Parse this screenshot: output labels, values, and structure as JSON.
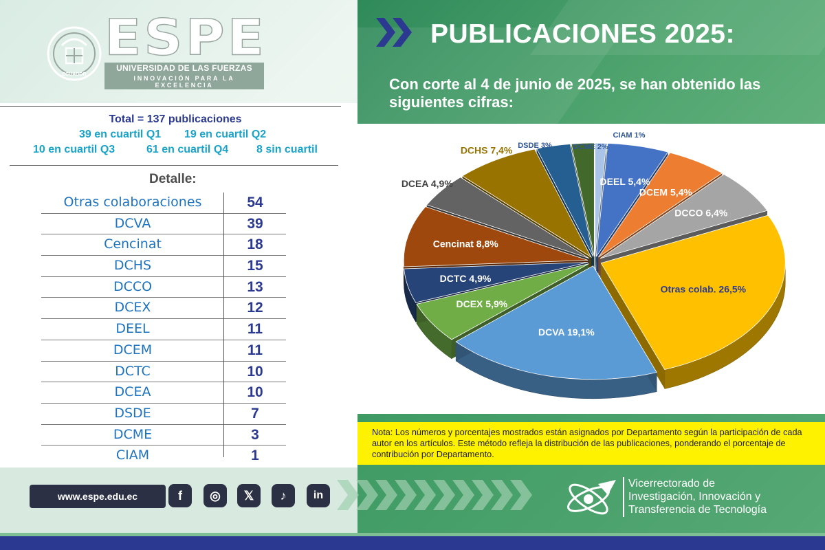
{
  "brand": {
    "name": "ESPE",
    "university": "UNIVERSIDAD DE LAS FUERZAS ARMADAS",
    "tagline": "INNOVACIÓN PARA LA EXCELENCIA",
    "seal_label": "ECUADOR"
  },
  "header": {
    "title": "PUBLICACIONES 2025:",
    "subtitle": "Con corte al 4 de junio de 2025, se han obtenido las siguientes cifras:"
  },
  "summary": {
    "total": "Total = 137 publicaciones",
    "q1": "39 en cuartil Q1",
    "q2": "19 en cuartil Q2",
    "q3": "10 en cuartil Q3",
    "q4": "61 en cuartil Q4",
    "none": "8 sin cuartil"
  },
  "detail": {
    "heading": "Detalle:",
    "rows": [
      {
        "name": "Otras colaboraciones",
        "value": "54"
      },
      {
        "name": "DCVA",
        "value": "39"
      },
      {
        "name": "Cencinat",
        "value": "18"
      },
      {
        "name": "DCHS",
        "value": "15"
      },
      {
        "name": "DCCO",
        "value": "13"
      },
      {
        "name": "DCEX",
        "value": "12"
      },
      {
        "name": "DEEL",
        "value": "11"
      },
      {
        "name": "DCEM",
        "value": "11"
      },
      {
        "name": "DCTC",
        "value": "10"
      },
      {
        "name": "DCEA",
        "value": "10"
      },
      {
        "name": "DSDE",
        "value": "7"
      },
      {
        "name": "DCME",
        "value": "3"
      },
      {
        "name": "CIAM",
        "value": "1"
      }
    ]
  },
  "chart_data": {
    "type": "pie",
    "style": "3d-exploded",
    "slices": [
      {
        "label": "CIAM 1%",
        "value": 1,
        "color": "#a9c4e6"
      },
      {
        "label": "DEEL 5,4%",
        "value": 5.4,
        "color": "#4472c4"
      },
      {
        "label": "DCEM 5,4%",
        "value": 5.4,
        "color": "#ed7d31"
      },
      {
        "label": "DCCO 6,4%",
        "value": 6.4,
        "color": "#a5a5a5"
      },
      {
        "label": "Otras colab. 26,5%",
        "value": 26.5,
        "color": "#ffc000"
      },
      {
        "label": "DCVA 19,1%",
        "value": 19.1,
        "color": "#5b9bd5"
      },
      {
        "label": "DCEX 5,9%",
        "value": 5.9,
        "color": "#70ad47"
      },
      {
        "label": "DCTC 4,9%",
        "value": 4.9,
        "color": "#264478"
      },
      {
        "label": "Cencinat 8,8%",
        "value": 8.8,
        "color": "#9e480e"
      },
      {
        "label": "DCEA 4,9%",
        "value": 4.9,
        "color": "#636363"
      },
      {
        "label": "DCHS 7,4%",
        "value": 7.4,
        "color": "#997300"
      },
      {
        "label": "DSDE 3%",
        "value": 3,
        "color": "#255e91"
      },
      {
        "label": "DCME 2%",
        "value": 2,
        "color": "#43682b"
      }
    ]
  },
  "note": "Nota: Los números y porcentajes mostrados están asignados por Departamento según la participación de cada autor en los artículos. Este método refleja la distribución de las publicaciones, ponderando el porcentaje de contribución por Departamento.",
  "footer": {
    "url": "www.espe.edu.ec",
    "social": [
      {
        "name": "facebook",
        "glyph": "f"
      },
      {
        "name": "instagram",
        "glyph": "◎"
      },
      {
        "name": "x",
        "glyph": "𝕏"
      },
      {
        "name": "tiktok",
        "glyph": "♪"
      },
      {
        "name": "linkedin",
        "glyph": "in"
      }
    ],
    "vice_line1": "Vicerrectorado de",
    "vice_line2": "Investigación, Innovación y",
    "vice_line3": "Transferencia de Tecnología"
  },
  "colors": {
    "accent_green": "#3e9a63",
    "navy": "#2b3990",
    "table_blue": "#1e73be",
    "summary_cyan": "#1aa3c9",
    "note_yellow": "#fff200"
  }
}
